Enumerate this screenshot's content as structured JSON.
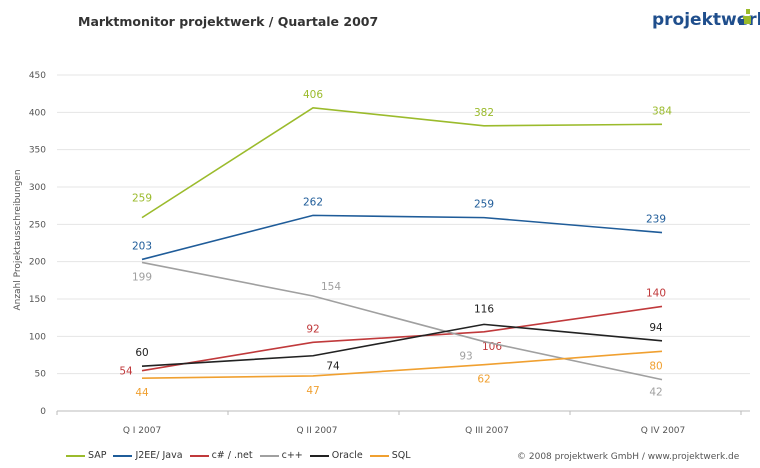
{
  "header": {
    "title": "Marktmonitor projektwerk / Quartale 2007",
    "logo": "projektwerk"
  },
  "footer": {
    "copyright": "© 2008 projektwerk GmbH / www.projektwerk.de"
  },
  "chart_data": {
    "type": "line",
    "title": "Marktmonitor projektwerk / Quartale 2007",
    "xlabel": "",
    "ylabel": "Anzahl Projektausschreibungen",
    "ylim": [
      0,
      450
    ],
    "yticks": [
      0,
      50,
      100,
      150,
      200,
      250,
      300,
      350,
      400,
      450
    ],
    "grid": true,
    "legend": "bottom-left",
    "categories": [
      "Q I 2007",
      "Q II 2007",
      "Q III  2007",
      "Q IV 2007"
    ],
    "series": [
      {
        "name": "SAP",
        "color": "#9bbb2c",
        "values": [
          259,
          406,
          382,
          384
        ]
      },
      {
        "name": "J2EE/ Java",
        "color": "#1f5c99",
        "values": [
          203,
          262,
          259,
          239
        ]
      },
      {
        "name": "c# / .net",
        "color": "#c0393b",
        "values": [
          54,
          92,
          106,
          140
        ]
      },
      {
        "name": "c++",
        "color": "#a0a0a0",
        "values": [
          199,
          154,
          93,
          42
        ]
      },
      {
        "name": "Oracle",
        "color": "#222222",
        "values": [
          60,
          74,
          116,
          94
        ]
      },
      {
        "name": "SQL",
        "color": "#f0a030",
        "values": [
          44,
          47,
          62,
          80
        ]
      }
    ]
  }
}
